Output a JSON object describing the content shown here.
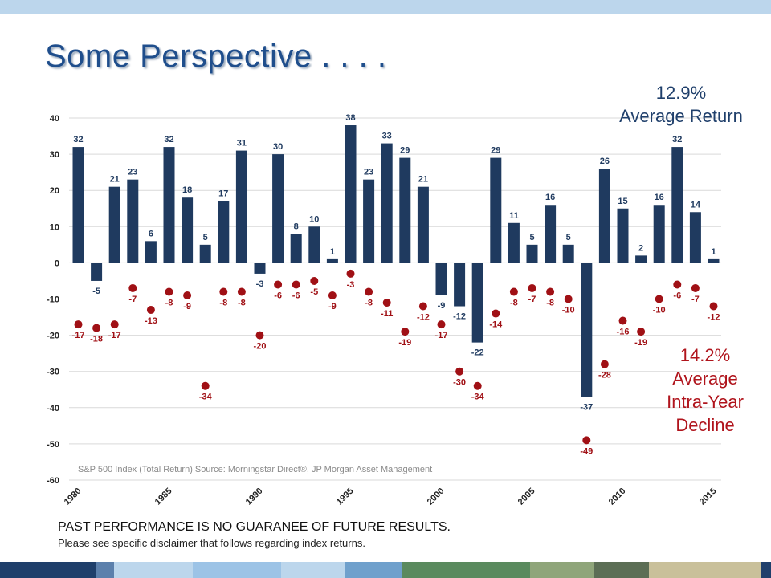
{
  "slide": {
    "title": "Some Perspective . . . .",
    "avg_return": {
      "value": "12.9%",
      "label": "Average Return"
    },
    "avg_decline": {
      "value": "14.2%",
      "line1": "Average",
      "line2": "Intra-Year",
      "line3": "Decline"
    },
    "source": "S&P 500 Index (Total Return)  Source: Morningstar Direct®, JP Morgan Asset Management",
    "disclaimer_main": "PAST PERFORMANCE IS NO GUARANEE OF FUTURE RESULTS.",
    "disclaimer_sub": "Please see specific disclaimer that follows regarding index returns."
  },
  "colors": {
    "bar": "#1f3a5f",
    "dot": "#a01015",
    "bar_label": "#1f3a5f",
    "dot_label": "#a01015",
    "grid": "#d9d9d9",
    "footer": [
      "#1f3f6b",
      "#5c80ac",
      "#bcd6ec",
      "#9cc3e6",
      "#bcd6ec",
      "#6fa0cc",
      "#5a8a5e",
      "#8fa57a",
      "#5c6e55",
      "#c9c09a",
      "#1f3f6b"
    ]
  },
  "chart_data": {
    "type": "bar",
    "ylim": [
      -60,
      40
    ],
    "yticks": [
      40,
      30,
      20,
      10,
      0,
      -10,
      -20,
      -30,
      -40,
      -50,
      -60
    ],
    "grid": true,
    "xtick_labels": [
      "1980",
      "1985",
      "1990",
      "1995",
      "2000",
      "2005",
      "2010",
      "2015"
    ],
    "x": [
      1980,
      1981,
      1982,
      1983,
      1984,
      1985,
      1986,
      1987,
      1988,
      1989,
      1990,
      1991,
      1992,
      1993,
      1994,
      1995,
      1996,
      1997,
      1998,
      1999,
      2000,
      2001,
      2002,
      2003,
      2004,
      2005,
      2006,
      2007,
      2008,
      2009,
      2010,
      2011,
      2012,
      2013,
      2014,
      2015
    ],
    "series": [
      {
        "type": "bar",
        "values": [
          32,
          -5,
          21,
          23,
          6,
          32,
          18,
          5,
          17,
          31,
          -3,
          30,
          8,
          10,
          1,
          38,
          23,
          33,
          29,
          21,
          -9,
          -12,
          -22,
          29,
          11,
          5,
          16,
          5,
          -37,
          26,
          15,
          2,
          16,
          32,
          14,
          1
        ]
      },
      {
        "type": "scatter",
        "values": [
          -17,
          -18,
          -17,
          -7,
          -13,
          -8,
          -9,
          -34,
          -8,
          -8,
          -20,
          -6,
          -6,
          -5,
          -9,
          -3,
          -8,
          -11,
          -19,
          -12,
          -17,
          -30,
          -34,
          -14,
          -8,
          -7,
          -8,
          -10,
          -49,
          -28,
          -16,
          -19,
          -10,
          -6,
          -7,
          -12
        ]
      }
    ]
  }
}
